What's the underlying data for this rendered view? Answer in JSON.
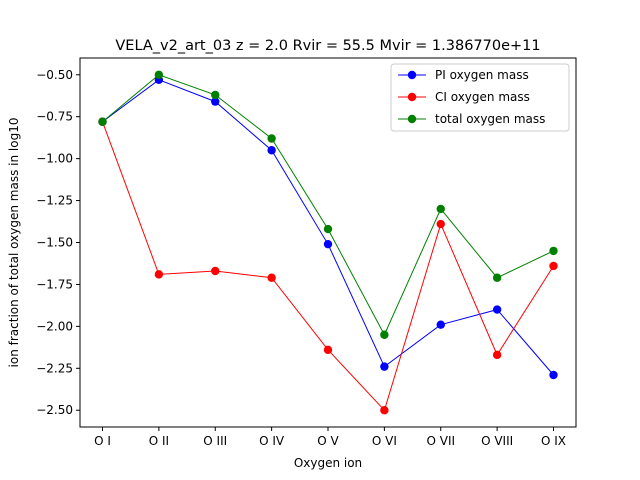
{
  "chart_data": {
    "type": "line",
    "title": "VELA_v2_art_03 z = 2.0 Rvir = 55.5 Mvir = 1.386770e+11",
    "xlabel": "Oxygen ion",
    "ylabel": "ion fraction of total oxygen mass in log10",
    "categories": [
      "O I",
      "O II",
      "O III",
      "O IV",
      "O V",
      "O VI",
      "O VII",
      "O VIII",
      "O IX"
    ],
    "ylim": [
      -2.6,
      -0.4
    ],
    "yticks": [
      -0.5,
      -0.75,
      -1.0,
      -1.25,
      -1.5,
      -1.75,
      -2.0,
      -2.25,
      -2.5
    ],
    "ytick_labels": [
      "−0.50",
      "−0.75",
      "−1.00",
      "−1.25",
      "−1.50",
      "−1.75",
      "−2.00",
      "−2.25",
      "−2.50"
    ],
    "grid": false,
    "legend_position": "top-right",
    "series": [
      {
        "name": "PI oxygen mass",
        "color": "#0000ff",
        "values": [
          -0.78,
          -0.53,
          -0.66,
          -0.95,
          -1.51,
          -2.24,
          -1.99,
          -1.9,
          -2.29
        ]
      },
      {
        "name": "CI oxygen mass",
        "color": "#ff0000",
        "values": [
          -0.78,
          -1.69,
          -1.67,
          -1.71,
          -2.14,
          -2.5,
          -1.39,
          -2.17,
          -1.64
        ]
      },
      {
        "name": "total oxygen mass",
        "color": "#008000",
        "values": [
          -0.78,
          -0.5,
          -0.62,
          -0.88,
          -1.42,
          -2.05,
          -1.3,
          -1.71,
          -1.55
        ]
      }
    ]
  }
}
